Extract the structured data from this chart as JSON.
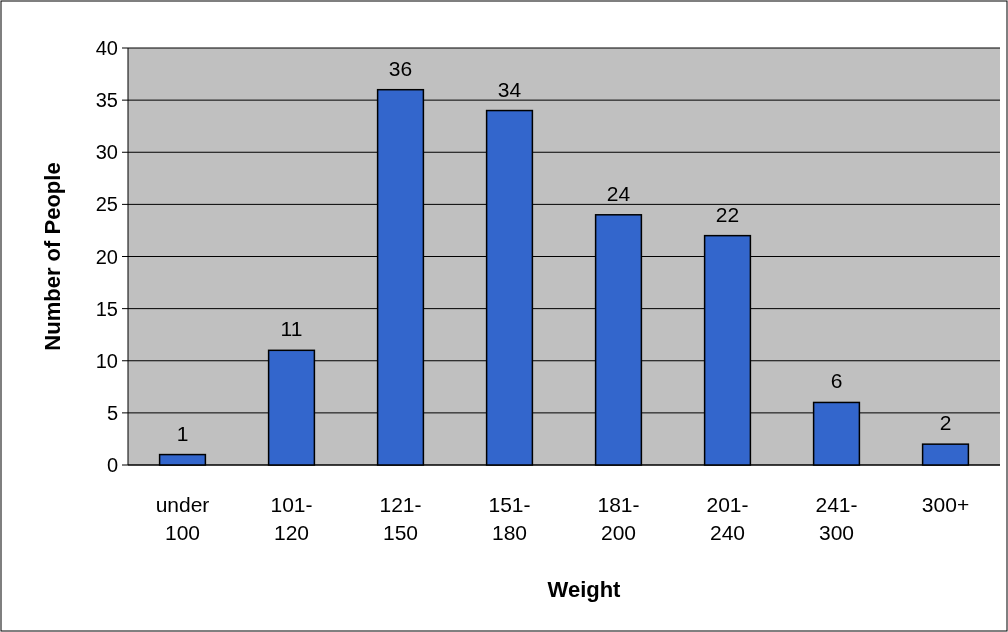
{
  "chart_data": {
    "type": "bar",
    "xlabel": "Weight",
    "ylabel": "Number of People",
    "categories": [
      "under 100",
      "101-120",
      "121-150",
      "151-180",
      "181-200",
      "201-240",
      "241-300",
      "300+"
    ],
    "values": [
      1,
      11,
      36,
      34,
      24,
      22,
      6,
      2
    ],
    "color": "#3366cc",
    "ylim": [
      0,
      40
    ],
    "yticks": [
      0,
      5,
      10,
      15,
      20,
      25,
      30,
      35,
      40
    ],
    "grid": "y",
    "data_labels": true
  }
}
